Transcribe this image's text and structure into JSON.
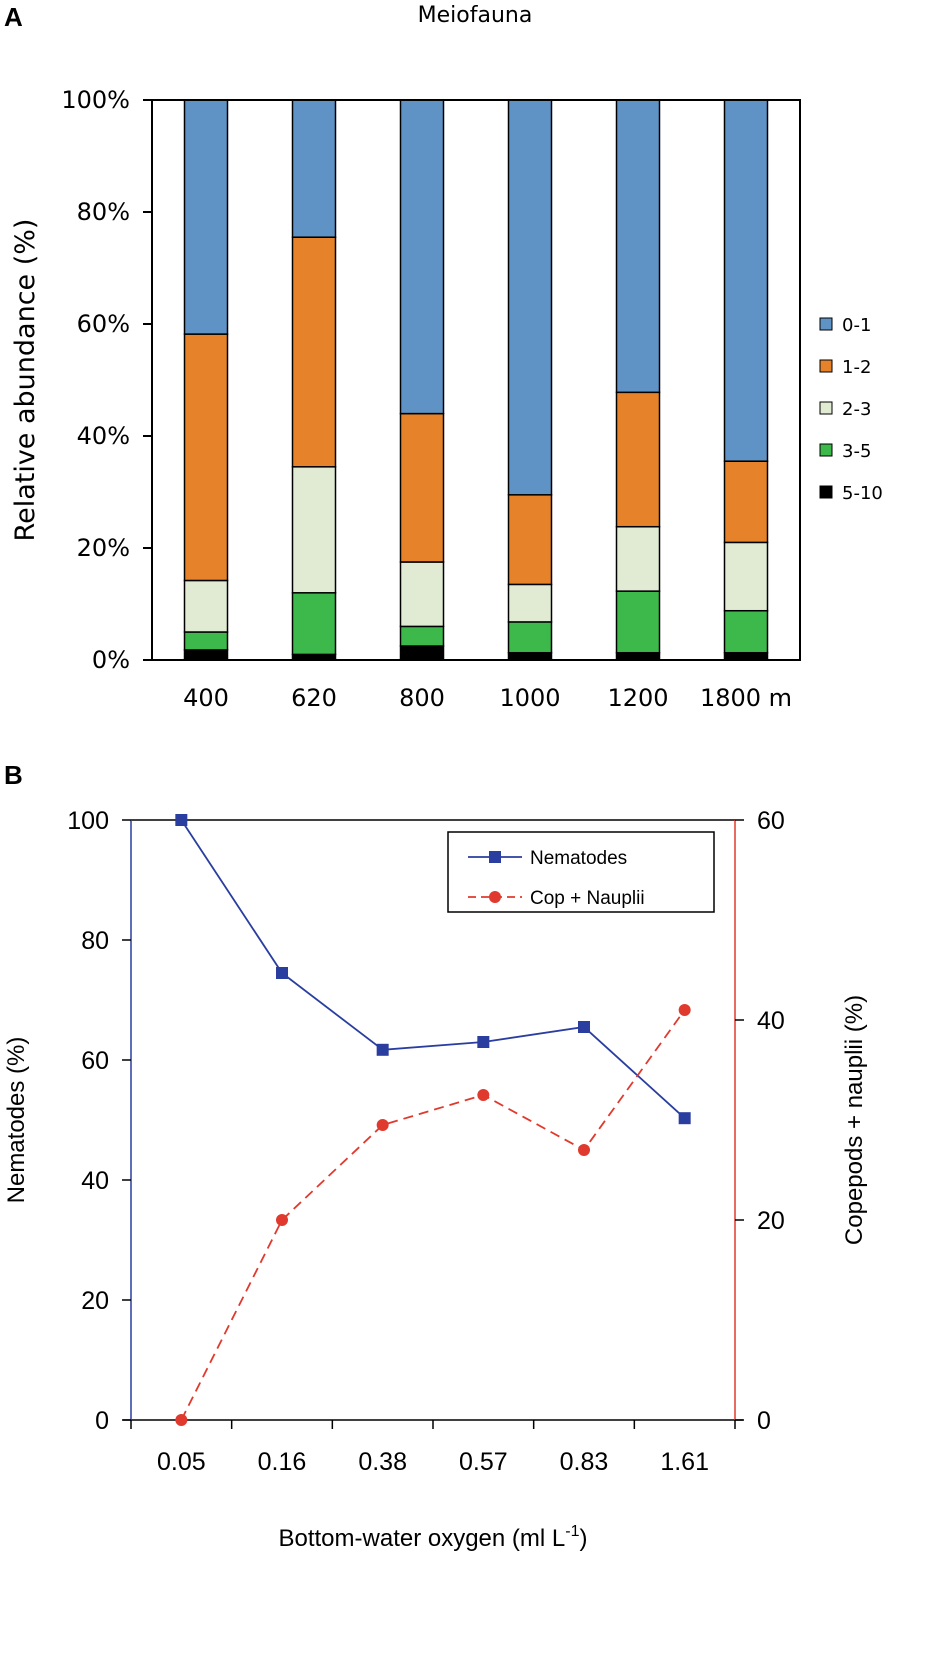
{
  "panels": {
    "a_letter": "A",
    "b_letter": "B"
  },
  "chart_data": [
    {
      "type": "bar",
      "stacked": true,
      "title": "Meiofauna",
      "ylabel": "Relative abundance (%)",
      "xlabel": "",
      "ylim": [
        0,
        100
      ],
      "y_ticks": [
        "0%",
        "20%",
        "40%",
        "60%",
        "80%",
        "100%"
      ],
      "categories": [
        "400",
        "620",
        "800",
        "1000",
        "1200",
        "1800 m"
      ],
      "series": [
        {
          "name": "5-10",
          "color": "#000000",
          "values": [
            1.8,
            1.0,
            2.5,
            1.3,
            1.3,
            1.3
          ]
        },
        {
          "name": "3-5",
          "color": "#3cb94a",
          "values": [
            3.2,
            11.0,
            3.5,
            5.5,
            11.0,
            7.5
          ]
        },
        {
          "name": "2-3",
          "color": "#e1ead3",
          "values": [
            9.2,
            22.5,
            11.5,
            6.7,
            11.5,
            12.2
          ]
        },
        {
          "name": "1-2",
          "color": "#e5822a",
          "values": [
            44.0,
            41.0,
            26.5,
            16.0,
            24.0,
            14.5
          ]
        },
        {
          "name": "0-1",
          "color": "#5f93c6",
          "values": [
            41.8,
            24.5,
            56.0,
            70.5,
            52.2,
            64.5
          ]
        }
      ],
      "legend_order": [
        "0-1",
        "1-2",
        "2-3",
        "3-5",
        "5-10"
      ],
      "legend_position": "right"
    },
    {
      "type": "line",
      "xlabel": "Bottom-water oxygen (ml L",
      "xlabel_sup": "-1",
      "xlabel_close": ")",
      "ylabel_left": "Nematodes (%)",
      "ylabel_right": "Copepods + nauplii (%)",
      "categories": [
        "0.05",
        "0.16",
        "0.38",
        "0.57",
        "0.83",
        "1.61"
      ],
      "ylim_left": [
        0,
        100
      ],
      "ylim_right": [
        0,
        60
      ],
      "y_ticks_left": [
        "0",
        "20",
        "40",
        "60",
        "80",
        "100"
      ],
      "y_ticks_right": [
        "0",
        "20",
        "40",
        "60"
      ],
      "series": [
        {
          "name": "Nematodes",
          "axis": "left",
          "color": "#2a3ea0",
          "marker": "square",
          "dash": "solid",
          "values": [
            100,
            74.5,
            61.7,
            63.0,
            65.5,
            50.3
          ]
        },
        {
          "name": "Cop + Nauplii",
          "axis": "right",
          "color": "#e03a2e",
          "marker": "circle",
          "dash": "dashed",
          "values": [
            0,
            20.0,
            29.5,
            32.5,
            27.0,
            41.0
          ]
        }
      ],
      "legend_position": "top-right"
    }
  ]
}
